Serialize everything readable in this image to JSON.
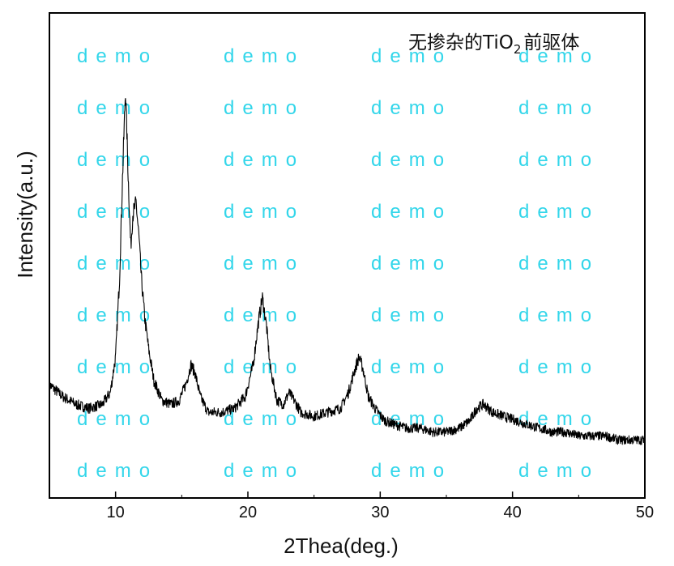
{
  "chart_data": {
    "type": "line",
    "title": "",
    "legend_label": "无掺杂的TiO",
    "legend_subscript": "2",
    "legend_suffix": "前驱体",
    "legend_position": "top-right",
    "xlabel": "2Thea(deg.)",
    "ylabel": "Intensity(a.u.)",
    "xlim": [
      5,
      50
    ],
    "ylim": [
      0,
      100
    ],
    "xticks": [
      10,
      20,
      30,
      40,
      50
    ],
    "xtick_labels": [
      "10",
      "20",
      "30",
      "40",
      "50"
    ],
    "y_ticks_shown": false,
    "grid": false,
    "series": [
      {
        "name": "无掺杂的TiO2前驱体",
        "color": "#000000",
        "x": [
          5,
          6,
          7,
          8,
          9,
          9.6,
          10.0,
          10.3,
          10.55,
          10.75,
          10.95,
          11.15,
          11.3,
          11.55,
          11.75,
          11.95,
          12.2,
          12.5,
          12.9,
          13.5,
          14.2,
          14.8,
          15.3,
          15.7,
          16.0,
          16.4,
          17,
          18,
          19,
          19.8,
          20.4,
          20.8,
          21.1,
          21.4,
          21.7,
          22.2,
          22.7,
          23.1,
          23.5,
          24,
          25,
          26,
          27,
          27.6,
          28.1,
          28.4,
          28.7,
          29.1,
          29.6,
          30.3,
          31,
          32,
          33,
          34,
          35,
          36,
          36.8,
          37.3,
          37.8,
          38.5,
          39.3,
          40.2,
          41,
          42,
          43,
          44,
          45,
          46,
          47,
          48,
          49,
          50
        ],
        "y": [
          17,
          14,
          12,
          11,
          12,
          15,
          24,
          44,
          72,
          92,
          70,
          52,
          60,
          63,
          55,
          44,
          34,
          26,
          18,
          13,
          12,
          13,
          17,
          22,
          20,
          14,
          10,
          10,
          11,
          14,
          22,
          33,
          39,
          32,
          21,
          13,
          12,
          15,
          13,
          10,
          9,
          10,
          11,
          15,
          21,
          24,
          21,
          14,
          11,
          8,
          7,
          6,
          6,
          5,
          5,
          6,
          8,
          11,
          12,
          10,
          9,
          8,
          7,
          6,
          5,
          5,
          4,
          4,
          4,
          3,
          3,
          3
        ]
      }
    ]
  },
  "watermark": {
    "text": "demo",
    "color": "#33d6ea"
  }
}
